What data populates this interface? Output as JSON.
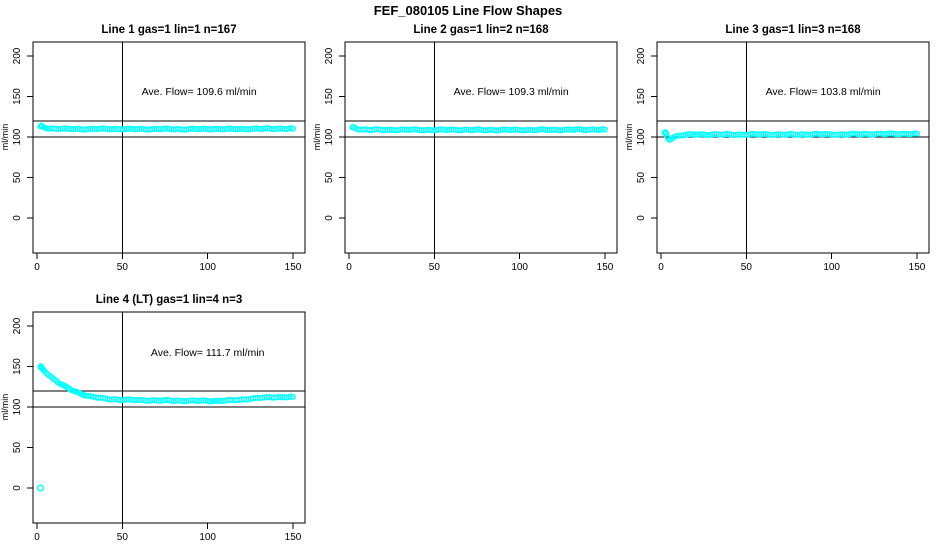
{
  "page_title": "FEF_080105  Line Flow Shapes",
  "colors": {
    "data_point": "#00ffff",
    "axis": "#000000",
    "background": "#ffffff",
    "text": "#000000"
  },
  "annotation": {
    "prefix": "Ave. Flow=",
    "unit": "ml/min"
  },
  "axes": {
    "x_ticks": [
      0,
      50,
      100,
      150
    ],
    "y_ticks": [
      0,
      50,
      100,
      150,
      200
    ],
    "ylabel": "ml/min"
  },
  "reference_lines": {
    "vertical_x": 50,
    "horizontal_y": [
      100,
      120
    ]
  },
  "chart_data": [
    {
      "type": "scatter",
      "title": "Line 1 gas=1 lin=1 n=167",
      "ave_flow": 109.6,
      "n": 167,
      "xlim": [
        0,
        150
      ],
      "ylim": [
        0,
        200
      ],
      "series": [
        {
          "name": "flow",
          "keypoints": [
            [
              2,
              112.5
            ],
            [
              2.5,
              113.5
            ],
            [
              3,
              113
            ],
            [
              4,
              112
            ],
            [
              5,
              111.5
            ],
            [
              7,
              110.8
            ],
            [
              10,
              110.3
            ],
            [
              15,
              110
            ],
            [
              25,
              109.8
            ],
            [
              40,
              110
            ],
            [
              55,
              109.7
            ],
            [
              70,
              109.9
            ],
            [
              85,
              109.6
            ],
            [
              100,
              109.9
            ],
            [
              115,
              109.7
            ],
            [
              125,
              110
            ],
            [
              135,
              110.2
            ],
            [
              145,
              110.4
            ],
            [
              150,
              110.2
            ]
          ]
        }
      ],
      "outliers": [],
      "annotation_xy": [
        95,
        152
      ]
    },
    {
      "type": "scatter",
      "title": "Line 2 gas=1 lin=2 n=168",
      "ave_flow": 109.3,
      "n": 168,
      "xlim": [
        0,
        150
      ],
      "ylim": [
        0,
        200
      ],
      "series": [
        {
          "name": "flow",
          "keypoints": [
            [
              2,
              111.5
            ],
            [
              2.5,
              112
            ],
            [
              3.5,
              111
            ],
            [
              5,
              110
            ],
            [
              8,
              109.3
            ],
            [
              12,
              109
            ],
            [
              20,
              108.8
            ],
            [
              35,
              109
            ],
            [
              50,
              108.7
            ],
            [
              65,
              108.9
            ],
            [
              80,
              108.6
            ],
            [
              95,
              108.8
            ],
            [
              110,
              108.7
            ],
            [
              120,
              108.9
            ],
            [
              130,
              109
            ],
            [
              140,
              109.2
            ],
            [
              150,
              109.1
            ]
          ]
        }
      ],
      "outliers": [],
      "annotation_xy": [
        95,
        152
      ]
    },
    {
      "type": "scatter",
      "title": "Line 3 gas=1 lin=3 n=168",
      "ave_flow": 103.8,
      "n": 168,
      "xlim": [
        0,
        150
      ],
      "ylim": [
        0,
        200
      ],
      "series": [
        {
          "name": "flow",
          "keypoints": [
            [
              2,
              104.5
            ],
            [
              2.5,
              105.5
            ],
            [
              3,
              104
            ],
            [
              3.5,
              101
            ],
            [
              4,
              98.5
            ],
            [
              5,
              97
            ],
            [
              6,
              98
            ],
            [
              7,
              99.5
            ],
            [
              9,
              101
            ],
            [
              12,
              102.3
            ],
            [
              18,
              103
            ],
            [
              30,
              103.2
            ],
            [
              45,
              103
            ],
            [
              60,
              103.3
            ],
            [
              75,
              103
            ],
            [
              90,
              103.4
            ],
            [
              105,
              103.2
            ],
            [
              120,
              103.6
            ],
            [
              135,
              103.8
            ],
            [
              150,
              104
            ]
          ]
        }
      ],
      "outliers": [],
      "annotation_xy": [
        95,
        152
      ]
    },
    {
      "type": "scatter",
      "title": "Line 4 (LT) gas=1 lin=4 n=3",
      "ave_flow": 111.7,
      "n": 3,
      "xlim": [
        0,
        150
      ],
      "ylim": [
        0,
        200
      ],
      "series": [
        {
          "name": "flow",
          "keypoints": [
            [
              2,
              149
            ],
            [
              2.3,
              150
            ],
            [
              2.6,
              148
            ],
            [
              3,
              147.5
            ],
            [
              3.5,
              146.5
            ],
            [
              4,
              145.5
            ],
            [
              5,
              143.5
            ],
            [
              6,
              141.5
            ],
            [
              7,
              139.5
            ],
            [
              8,
              137.8
            ],
            [
              9,
              136
            ],
            [
              10,
              134.3
            ],
            [
              11,
              132.8
            ],
            [
              12,
              131.3
            ],
            [
              13,
              129.8
            ],
            [
              14,
              128.4
            ],
            [
              15,
              127
            ],
            [
              16,
              125.8
            ],
            [
              17,
              124.6
            ],
            [
              18,
              123.4
            ],
            [
              19,
              122.3
            ],
            [
              20,
              121.3
            ],
            [
              22,
              119.4
            ],
            [
              24,
              117.8
            ],
            [
              26,
              116.3
            ],
            [
              28,
              115
            ],
            [
              30,
              113.8
            ],
            [
              33,
              112.4
            ],
            [
              36,
              111.3
            ],
            [
              40,
              110.3
            ],
            [
              45,
              109.5
            ],
            [
              50,
              109
            ],
            [
              55,
              108.7
            ],
            [
              60,
              108.4
            ],
            [
              70,
              108.1
            ],
            [
              80,
              107.9
            ],
            [
              90,
              107.7
            ],
            [
              100,
              107.6
            ],
            [
              107,
              107.7
            ],
            [
              112,
              108
            ],
            [
              116,
              108.5
            ],
            [
              120,
              109.2
            ],
            [
              124,
              110
            ],
            [
              128,
              110.8
            ],
            [
              132,
              111.4
            ],
            [
              136,
              111.8
            ],
            [
              140,
              112.1
            ],
            [
              145,
              112.3
            ],
            [
              150,
              112.4
            ]
          ]
        }
      ],
      "outliers": [
        [
          2,
          0
        ]
      ],
      "annotation_xy": [
        100,
        163
      ]
    }
  ]
}
